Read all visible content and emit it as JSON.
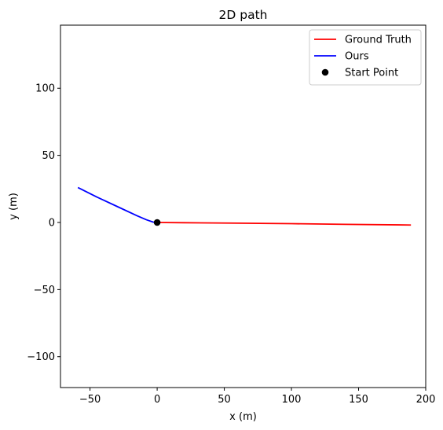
{
  "chart_data": {
    "type": "line",
    "title": "2D path",
    "xlabel": "x (m)",
    "ylabel": "y (m)",
    "xlim": [
      -72,
      200
    ],
    "ylim": [
      -123,
      147
    ],
    "xticks": [
      -50,
      0,
      50,
      100,
      150,
      200
    ],
    "xtick_labels": [
      "−50",
      "0",
      "50",
      "100",
      "150",
      "200"
    ],
    "yticks": [
      -100,
      -50,
      0,
      50,
      100
    ],
    "ytick_labels": [
      "−100",
      "−50",
      "0",
      "50",
      "100"
    ],
    "grid": false,
    "legend_position": "top-right",
    "series": [
      {
        "name": "Ground Truth",
        "color": "#ff0000",
        "kind": "line",
        "x": [
          0,
          20,
          60,
          100,
          140,
          189
        ],
        "y": [
          0,
          -0.2,
          -0.5,
          -0.9,
          -1.4,
          -1.9
        ]
      },
      {
        "name": "Ours",
        "color": "#0000ff",
        "kind": "line",
        "x": [
          -59,
          -45,
          -30,
          -15,
          -8,
          -3,
          0
        ],
        "y": [
          26,
          19,
          12,
          5,
          2,
          0.3,
          0
        ]
      },
      {
        "name": "Start Point",
        "color": "#000000",
        "kind": "point",
        "x": [
          0
        ],
        "y": [
          0
        ]
      }
    ]
  }
}
